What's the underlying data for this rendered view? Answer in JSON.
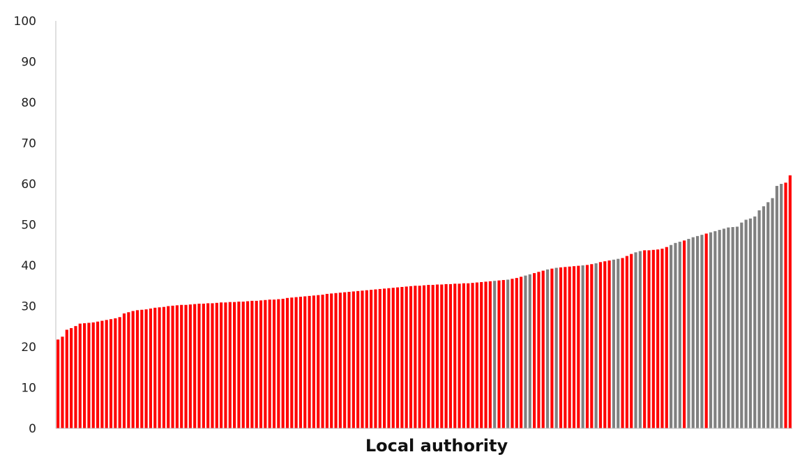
{
  "chart_data": {
    "type": "bar",
    "title": "",
    "xlabel": "Local authority",
    "ylabel": "",
    "ylim": [
      0,
      100
    ],
    "yticks": [
      "0",
      "10",
      "20",
      "30",
      "40",
      "50",
      "60",
      "70",
      "80",
      "90",
      "100"
    ],
    "grid": false,
    "legend": "none",
    "colors": {
      "red": "#ff0000",
      "grey": "#808080"
    },
    "series": [
      {
        "values": [
          21.8,
          22.5,
          24.2,
          24.6,
          25.1,
          25.7,
          25.8,
          25.9,
          26.0,
          26.2,
          26.4,
          26.6,
          26.8,
          27.0,
          27.3,
          28.2,
          28.5,
          28.8,
          29.0,
          29.1,
          29.2,
          29.4,
          29.6,
          29.7,
          29.8,
          30.0,
          30.1,
          30.2,
          30.3,
          30.3,
          30.4,
          30.5,
          30.6,
          30.6,
          30.7,
          30.7,
          30.8,
          30.9,
          30.9,
          31.0,
          31.0,
          31.1,
          31.1,
          31.2,
          31.3,
          31.3,
          31.4,
          31.5,
          31.6,
          31.6,
          31.7,
          31.8,
          32.0,
          32.1,
          32.2,
          32.3,
          32.4,
          32.5,
          32.6,
          32.7,
          32.8,
          33.0,
          33.1,
          33.2,
          33.3,
          33.4,
          33.5,
          33.6,
          33.7,
          33.8,
          33.9,
          34.0,
          34.1,
          34.2,
          34.3,
          34.4,
          34.5,
          34.6,
          34.7,
          34.8,
          34.9,
          35.0,
          35.0,
          35.1,
          35.2,
          35.2,
          35.3,
          35.3,
          35.4,
          35.4,
          35.5,
          35.5,
          35.6,
          35.6,
          35.7,
          35.8,
          35.9,
          36.0,
          36.1,
          36.2,
          36.3,
          36.4,
          36.5,
          36.7,
          36.9,
          37.2,
          37.5,
          37.8,
          38.1,
          38.4,
          38.7,
          39.0,
          39.2,
          39.4,
          39.5,
          39.6,
          39.7,
          39.8,
          39.9,
          40.0,
          40.1,
          40.3,
          40.5,
          40.8,
          41.0,
          41.2,
          41.4,
          41.6,
          41.8,
          42.3,
          42.8,
          43.2,
          43.5,
          43.7,
          43.7,
          43.8,
          43.9,
          44.1,
          44.5,
          45.0,
          45.5,
          45.8,
          46.1,
          46.5,
          46.9,
          47.2,
          47.5,
          47.8,
          48.1,
          48.4,
          48.7,
          49.0,
          49.3,
          49.4,
          49.5,
          50.5,
          51.2,
          51.5,
          52.0,
          53.5,
          54.5,
          55.5,
          56.5,
          59.5,
          60.0,
          60.3,
          62.1
        ],
        "colors": [
          "r",
          "r",
          "r",
          "r",
          "r",
          "r",
          "r",
          "r",
          "r",
          "r",
          "r",
          "r",
          "r",
          "r",
          "r",
          "r",
          "r",
          "r",
          "r",
          "r",
          "r",
          "r",
          "r",
          "r",
          "r",
          "r",
          "r",
          "r",
          "r",
          "r",
          "r",
          "r",
          "r",
          "r",
          "r",
          "r",
          "r",
          "r",
          "r",
          "r",
          "r",
          "r",
          "r",
          "r",
          "r",
          "r",
          "r",
          "r",
          "r",
          "r",
          "r",
          "r",
          "r",
          "r",
          "r",
          "r",
          "r",
          "r",
          "r",
          "r",
          "r",
          "r",
          "r",
          "r",
          "r",
          "r",
          "r",
          "r",
          "r",
          "r",
          "r",
          "r",
          "r",
          "r",
          "r",
          "r",
          "r",
          "r",
          "r",
          "r",
          "r",
          "r",
          "r",
          "r",
          "r",
          "r",
          "r",
          "r",
          "r",
          "r",
          "r",
          "r",
          "r",
          "r",
          "r",
          "r",
          "r",
          "r",
          "r",
          "g",
          "r",
          "r",
          "g",
          "r",
          "r",
          "r",
          "g",
          "g",
          "r",
          "r",
          "r",
          "g",
          "r",
          "g",
          "r",
          "r",
          "r",
          "r",
          "r",
          "g",
          "r",
          "r",
          "g",
          "r",
          "r",
          "r",
          "g",
          "g",
          "r",
          "r",
          "r",
          "g",
          "g",
          "r",
          "r",
          "r",
          "r",
          "r",
          "r",
          "g",
          "g",
          "g",
          "r",
          "g",
          "g",
          "g",
          "g",
          "r",
          "g",
          "g",
          "g",
          "g",
          "g",
          "g",
          "g",
          "g",
          "g",
          "g",
          "g",
          "g",
          "g",
          "g",
          "g",
          "g",
          "g"
        ]
      }
    ]
  }
}
